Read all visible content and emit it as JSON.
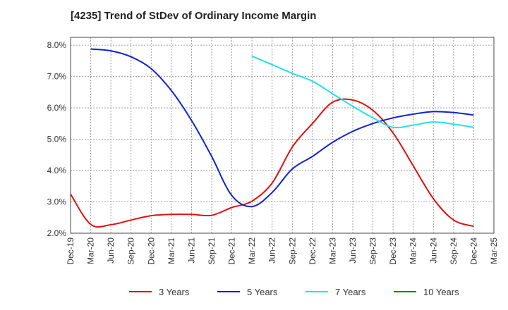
{
  "chart_data": {
    "type": "line",
    "title": "[4235]  Trend of StDev of Ordinary Income Margin",
    "xlabel": "",
    "ylabel": "",
    "x": [
      "Dec-19",
      "Mar-20",
      "Jun-20",
      "Sep-20",
      "Dec-20",
      "Mar-21",
      "Jun-21",
      "Sep-21",
      "Dec-21",
      "Mar-22",
      "Jun-22",
      "Sep-22",
      "Dec-22",
      "Mar-23",
      "Jun-23",
      "Sep-23",
      "Dec-23",
      "Mar-24",
      "Jun-24",
      "Sep-24",
      "Dec-24",
      "Mar-25"
    ],
    "yticks": [
      "2.0%",
      "3.0%",
      "4.0%",
      "5.0%",
      "6.0%",
      "7.0%",
      "8.0%"
    ],
    "ylim": [
      2.0,
      8.25
    ],
    "grid": true,
    "legend": "bottom",
    "series": [
      {
        "name": "3 Years",
        "color": "#dd1111",
        "values": [
          3.25,
          2.28,
          2.27,
          2.42,
          2.56,
          2.6,
          2.6,
          2.57,
          2.82,
          3.02,
          3.6,
          4.75,
          5.5,
          6.18,
          6.25,
          5.92,
          5.2,
          4.15,
          3.1,
          2.42,
          2.22,
          null
        ]
      },
      {
        "name": "5 Years",
        "color": "#1122cc",
        "values": [
          null,
          7.88,
          7.82,
          7.63,
          7.25,
          6.55,
          5.6,
          4.45,
          3.2,
          2.85,
          3.3,
          4.05,
          4.45,
          4.9,
          5.25,
          5.5,
          5.68,
          5.8,
          5.88,
          5.85,
          5.77,
          null
        ]
      },
      {
        "name": "7 Years",
        "color": "#22e0ee",
        "values": [
          null,
          null,
          null,
          null,
          null,
          null,
          null,
          null,
          null,
          7.65,
          7.38,
          7.1,
          6.85,
          6.45,
          6.05,
          5.68,
          5.38,
          5.45,
          5.55,
          5.48,
          5.38,
          null
        ]
      },
      {
        "name": "10 Years",
        "color": "#118811",
        "values": [
          null,
          null,
          null,
          null,
          null,
          null,
          null,
          null,
          null,
          null,
          null,
          null,
          null,
          null,
          null,
          null,
          null,
          null,
          null,
          null,
          null,
          null
        ]
      }
    ]
  }
}
